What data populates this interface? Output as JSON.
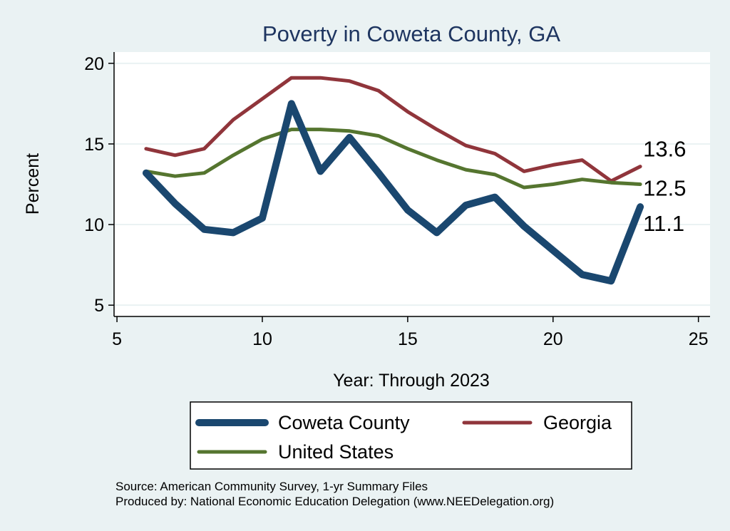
{
  "chart_data": {
    "type": "line",
    "title": "Poverty in Coweta County, GA",
    "xlabel": "Year: Through 2023",
    "ylabel": "Percent",
    "xlim": [
      4.9,
      25.4
    ],
    "ylim": [
      4.3,
      20.7
    ],
    "xticks": [
      5,
      10,
      15,
      20,
      25
    ],
    "yticks": [
      5,
      10,
      15,
      20
    ],
    "grid": "horizontal",
    "series": [
      {
        "name": "Coweta County",
        "color": "#1a476f",
        "x": [
          6,
          7,
          8,
          9,
          10,
          11,
          12,
          13,
          14,
          15,
          16,
          17,
          18,
          19,
          20,
          21,
          22,
          23
        ],
        "values": [
          13.2,
          11.3,
          9.7,
          9.5,
          10.4,
          17.5,
          13.3,
          15.4,
          13.2,
          10.9,
          9.5,
          11.2,
          11.7,
          9.9,
          8.4,
          6.9,
          6.5,
          11.1
        ],
        "end_label": "11.1"
      },
      {
        "name": "Georgia",
        "color": "#90353b",
        "x": [
          6,
          7,
          8,
          9,
          10,
          11,
          12,
          13,
          14,
          15,
          16,
          17,
          18,
          19,
          20,
          21,
          22,
          23
        ],
        "values": [
          14.7,
          14.3,
          14.7,
          16.5,
          17.8,
          19.1,
          19.1,
          18.9,
          18.3,
          17.0,
          15.9,
          14.9,
          14.4,
          13.3,
          13.7,
          14.0,
          12.7,
          13.6
        ],
        "end_label": "13.6"
      },
      {
        "name": "United States",
        "color": "#55752f",
        "x": [
          6,
          7,
          8,
          9,
          10,
          11,
          12,
          13,
          14,
          15,
          16,
          17,
          18,
          19,
          20,
          21,
          22,
          23
        ],
        "values": [
          13.3,
          13.0,
          13.2,
          14.3,
          15.3,
          15.9,
          15.9,
          15.8,
          15.5,
          14.7,
          14.0,
          13.4,
          13.1,
          12.3,
          12.5,
          12.8,
          12.6,
          12.5
        ],
        "end_label": "12.5"
      }
    ],
    "legend": {
      "position": "bottom",
      "items": [
        "Coweta County",
        "Georgia",
        "United States"
      ]
    },
    "notes": [
      "Source: American Community Survey, 1-yr Summary Files",
      "Produced by: National Economic Education Delegation (www.NEEDelegation.org)"
    ]
  },
  "colors": {
    "background": "#eaf2f3",
    "plot_background": "#ffffff",
    "grid": "#eaf2f3",
    "title": "#1e3560"
  }
}
